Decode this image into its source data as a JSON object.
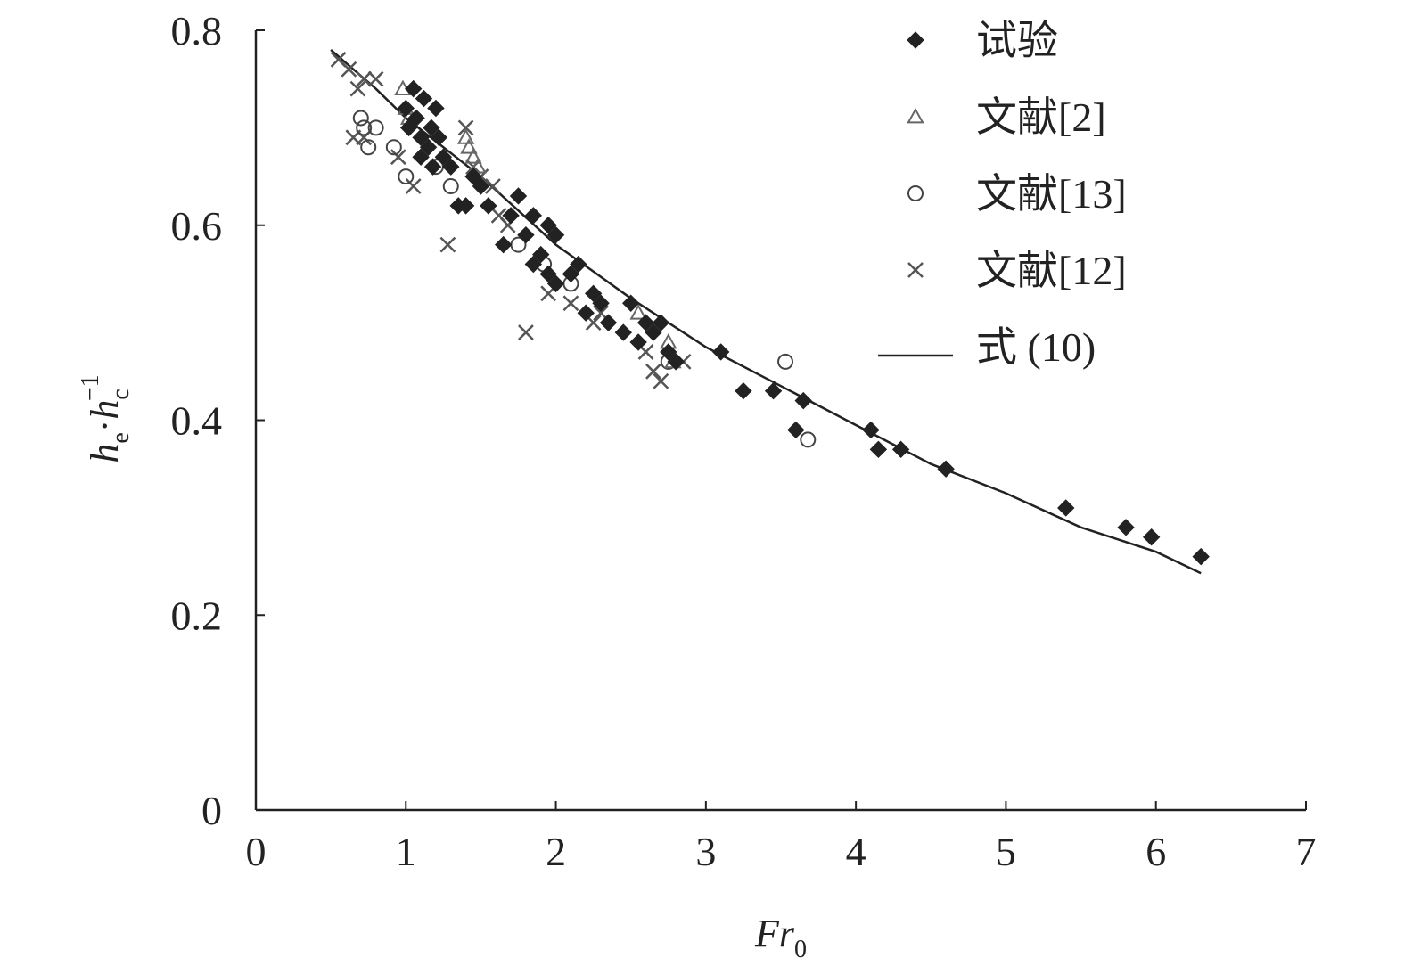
{
  "chart_data": {
    "type": "scatter",
    "xlabel": {
      "main": "Fr",
      "sub": "0"
    },
    "ylabel": {
      "h1": "h",
      "sub1": "e",
      "dot": "·",
      "h2": "h",
      "sub2": "c",
      "sup2": "−1"
    },
    "xlim": [
      0,
      7
    ],
    "ylim": [
      0,
      0.8
    ],
    "x_ticks": [
      "0",
      "1",
      "2",
      "3",
      "4",
      "5",
      "6",
      "7"
    ],
    "y_ticks": [
      "0",
      "0.2",
      "0.4",
      "0.6",
      "0.8"
    ],
    "grid": false,
    "legend_position": "top-right",
    "series": [
      {
        "name": "试验",
        "marker": "diamond",
        "color": "#222222",
        "points": [
          [
            1.0,
            0.72
          ],
          [
            1.02,
            0.7
          ],
          [
            1.05,
            0.74
          ],
          [
            1.07,
            0.71
          ],
          [
            1.1,
            0.69
          ],
          [
            1.12,
            0.73
          ],
          [
            1.15,
            0.68
          ],
          [
            1.17,
            0.7
          ],
          [
            1.2,
            0.72
          ],
          [
            1.22,
            0.69
          ],
          [
            1.25,
            0.67
          ],
          [
            1.1,
            0.67
          ],
          [
            1.18,
            0.66
          ],
          [
            1.3,
            0.66
          ],
          [
            1.35,
            0.62
          ],
          [
            1.4,
            0.62
          ],
          [
            1.45,
            0.65
          ],
          [
            1.5,
            0.64
          ],
          [
            1.55,
            0.62
          ],
          [
            1.65,
            0.58
          ],
          [
            1.7,
            0.61
          ],
          [
            1.75,
            0.63
          ],
          [
            1.8,
            0.59
          ],
          [
            1.85,
            0.61
          ],
          [
            1.9,
            0.57
          ],
          [
            1.95,
            0.6
          ],
          [
            2.0,
            0.59
          ],
          [
            1.85,
            0.56
          ],
          [
            1.95,
            0.55
          ],
          [
            2.0,
            0.54
          ],
          [
            2.1,
            0.55
          ],
          [
            2.15,
            0.56
          ],
          [
            2.2,
            0.51
          ],
          [
            2.25,
            0.53
          ],
          [
            2.3,
            0.52
          ],
          [
            2.35,
            0.5
          ],
          [
            2.45,
            0.49
          ],
          [
            2.5,
            0.52
          ],
          [
            2.55,
            0.48
          ],
          [
            2.6,
            0.5
          ],
          [
            2.65,
            0.49
          ],
          [
            2.7,
            0.5
          ],
          [
            2.75,
            0.47
          ],
          [
            2.8,
            0.46
          ],
          [
            3.1,
            0.47
          ],
          [
            3.25,
            0.43
          ],
          [
            3.45,
            0.43
          ],
          [
            3.6,
            0.39
          ],
          [
            3.65,
            0.42
          ],
          [
            4.1,
            0.39
          ],
          [
            4.15,
            0.37
          ],
          [
            4.3,
            0.37
          ],
          [
            4.6,
            0.35
          ],
          [
            5.4,
            0.31
          ],
          [
            5.8,
            0.29
          ],
          [
            5.97,
            0.28
          ],
          [
            6.3,
            0.26
          ]
        ]
      },
      {
        "name": "文献[2]",
        "marker": "triangle",
        "color": "#666666",
        "points": [
          [
            0.98,
            0.74
          ],
          [
            1.0,
            0.72
          ],
          [
            1.02,
            0.71
          ],
          [
            1.4,
            0.69
          ],
          [
            1.42,
            0.68
          ],
          [
            1.45,
            0.67
          ],
          [
            1.48,
            0.66
          ],
          [
            2.55,
            0.51
          ],
          [
            2.75,
            0.48
          ],
          [
            2.78,
            0.46
          ]
        ]
      },
      {
        "name": "文献[13]",
        "marker": "circle",
        "color": "#444444",
        "points": [
          [
            0.7,
            0.71
          ],
          [
            0.72,
            0.7
          ],
          [
            0.75,
            0.68
          ],
          [
            0.8,
            0.7
          ],
          [
            0.92,
            0.68
          ],
          [
            1.0,
            0.65
          ],
          [
            1.2,
            0.66
          ],
          [
            1.3,
            0.64
          ],
          [
            1.75,
            0.58
          ],
          [
            1.92,
            0.56
          ],
          [
            2.1,
            0.54
          ],
          [
            2.75,
            0.46
          ],
          [
            3.53,
            0.46
          ],
          [
            3.68,
            0.38
          ]
        ]
      },
      {
        "name": "文献[12]",
        "marker": "cross",
        "color": "#555555",
        "points": [
          [
            0.55,
            0.77
          ],
          [
            0.62,
            0.76
          ],
          [
            0.68,
            0.74
          ],
          [
            0.72,
            0.75
          ],
          [
            0.8,
            0.75
          ],
          [
            0.65,
            0.69
          ],
          [
            0.72,
            0.69
          ],
          [
            0.95,
            0.67
          ],
          [
            1.05,
            0.64
          ],
          [
            1.28,
            0.58
          ],
          [
            1.4,
            0.7
          ],
          [
            1.45,
            0.66
          ],
          [
            1.5,
            0.65
          ],
          [
            1.58,
            0.64
          ],
          [
            1.62,
            0.61
          ],
          [
            1.68,
            0.6
          ],
          [
            1.8,
            0.49
          ],
          [
            1.95,
            0.53
          ],
          [
            2.1,
            0.52
          ],
          [
            2.25,
            0.5
          ],
          [
            2.3,
            0.51
          ],
          [
            2.6,
            0.47
          ],
          [
            2.65,
            0.45
          ],
          [
            2.7,
            0.44
          ],
          [
            2.85,
            0.46
          ]
        ]
      },
      {
        "name": "式 (10)",
        "marker": "line",
        "color": "#222222",
        "points": [
          [
            0.5,
            0.78
          ],
          [
            0.8,
            0.74
          ],
          [
            1.0,
            0.71
          ],
          [
            1.5,
            0.65
          ],
          [
            2.0,
            0.58
          ],
          [
            2.5,
            0.525
          ],
          [
            3.0,
            0.475
          ],
          [
            3.5,
            0.435
          ],
          [
            4.0,
            0.395
          ],
          [
            4.5,
            0.355
          ],
          [
            5.0,
            0.325
          ],
          [
            5.5,
            0.29
          ],
          [
            6.0,
            0.265
          ],
          [
            6.3,
            0.243
          ]
        ]
      }
    ]
  }
}
